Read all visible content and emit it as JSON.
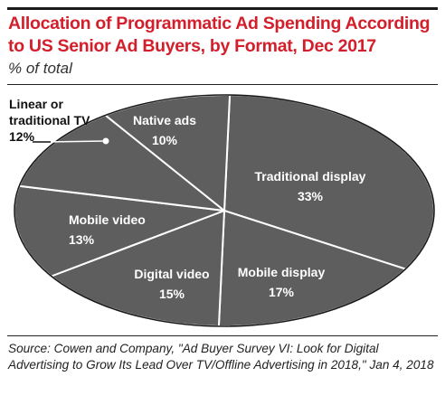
{
  "header": {
    "title": "Allocation of Programmatic Ad Spending According to US Senior Ad Buyers, by Format, Dec 2017",
    "subtitle": "% of total"
  },
  "footer": {
    "source": "Source: Cowen and Company, \"Ad Buyer Survey VI: Look for Digital Advertising to Grow Its Lead Over TV/Offline Advertising in 2018,\" Jan 4, 2018"
  },
  "colors": {
    "title": "#d31f2b",
    "slice_fill": "#5e5e5e",
    "slice_border": "#ffffff",
    "outline": "#1a1a1a"
  },
  "chart_data": {
    "type": "pie",
    "title": "Allocation of Programmatic Ad Spending According to US Senior Ad Buyers, by Format, Dec 2017",
    "subtitle": "% of total",
    "unit": "%",
    "slices": [
      {
        "label": "Traditional display",
        "value": 33,
        "value_label": "33%"
      },
      {
        "label": "Mobile display",
        "value": 17,
        "value_label": "17%"
      },
      {
        "label": "Digital video",
        "value": 15,
        "value_label": "15%"
      },
      {
        "label": "Mobile video",
        "value": 13,
        "value_label": "13%"
      },
      {
        "label": "Linear or traditional TV",
        "value": 12,
        "value_label": "12%"
      },
      {
        "label": "Native ads",
        "value": 10,
        "value_label": "10%"
      }
    ],
    "legend": "none"
  }
}
